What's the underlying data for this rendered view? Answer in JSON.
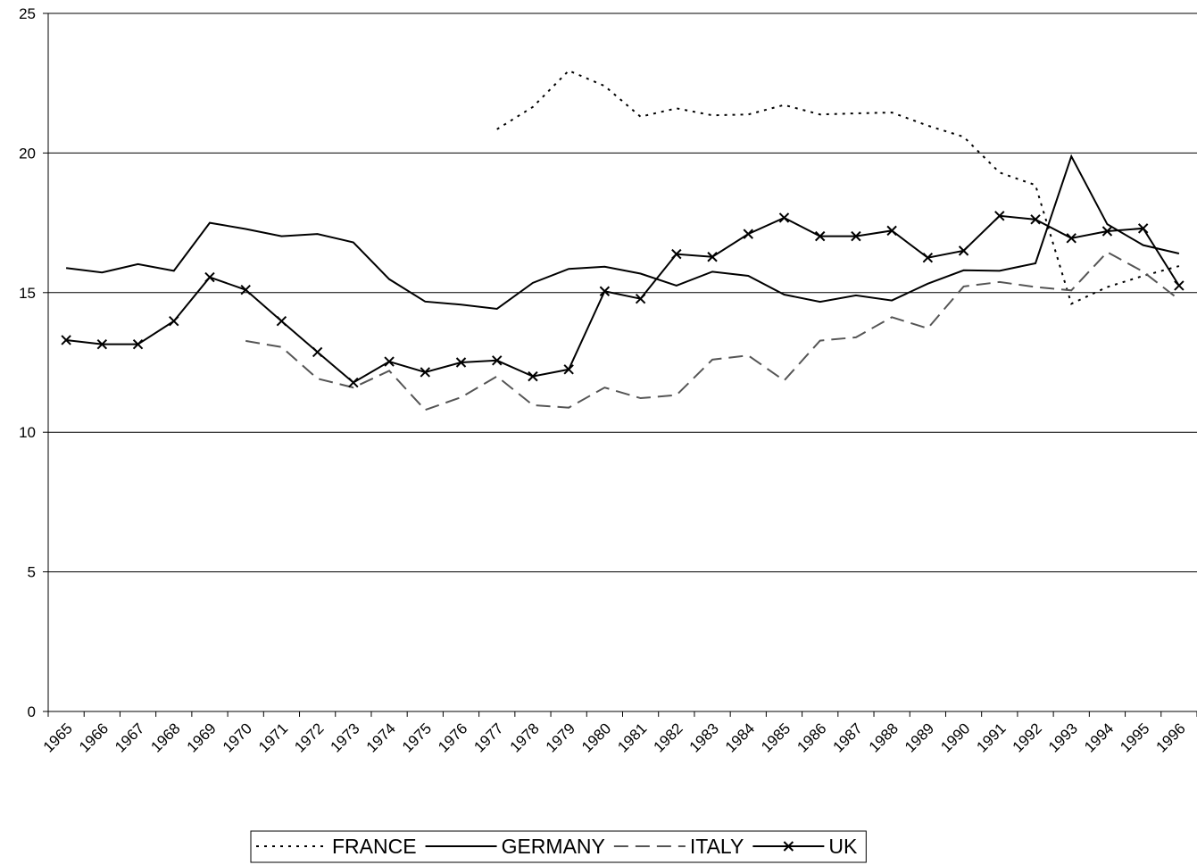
{
  "chart_data": {
    "type": "line",
    "categories": [
      "1965",
      "1966",
      "1967",
      "1968",
      "1969",
      "1970",
      "1971",
      "1972",
      "1973",
      "1974",
      "1975",
      "1976",
      "1977",
      "1978",
      "1979",
      "1980",
      "1981",
      "1982",
      "1983",
      "1984",
      "1985",
      "1986",
      "1987",
      "1988",
      "1989",
      "1990",
      "1991",
      "1992",
      "1993",
      "1994",
      "1995",
      "1996"
    ],
    "series": [
      {
        "name": "FRANCE",
        "color": "#000000",
        "style": "dotted",
        "values": [
          null,
          null,
          null,
          null,
          null,
          null,
          null,
          null,
          null,
          null,
          null,
          null,
          20.85,
          21.65,
          22.95,
          22.4,
          21.3,
          21.6,
          21.35,
          21.38,
          21.72,
          21.38,
          21.42,
          21.45,
          20.98,
          20.58,
          19.3,
          18.85,
          14.6,
          15.2,
          15.6,
          15.95
        ]
      },
      {
        "name": "GERMANY",
        "color": "#000000",
        "style": "solid",
        "values": [
          15.88,
          15.72,
          16.02,
          15.78,
          17.5,
          17.28,
          17.02,
          17.1,
          16.8,
          15.48,
          14.68,
          14.57,
          14.42,
          15.35,
          15.85,
          15.93,
          15.68,
          15.25,
          15.75,
          15.6,
          14.93,
          14.67,
          14.9,
          14.72,
          15.32,
          15.8,
          15.78,
          16.05,
          19.88,
          17.45,
          16.7,
          16.4
        ]
      },
      {
        "name": "ITALY",
        "color": "#555555",
        "style": "dashed",
        "values": [
          null,
          null,
          null,
          null,
          null,
          13.27,
          13.05,
          11.92,
          11.6,
          12.2,
          10.8,
          11.25,
          12.0,
          10.97,
          10.88,
          11.6,
          11.22,
          11.33,
          12.6,
          12.75,
          11.85,
          13.28,
          13.4,
          14.12,
          13.72,
          15.22,
          15.38,
          15.2,
          15.08,
          16.45,
          15.75,
          14.75
        ]
      },
      {
        "name": "UK",
        "color": "#000000",
        "style": "solid",
        "marker": "x",
        "values": [
          13.3,
          13.15,
          13.15,
          13.98,
          15.55,
          15.1,
          13.98,
          12.87,
          11.78,
          12.53,
          12.15,
          12.5,
          12.57,
          12.0,
          12.25,
          15.05,
          14.78,
          16.38,
          16.28,
          17.1,
          17.68,
          17.02,
          17.02,
          17.22,
          16.25,
          16.5,
          17.75,
          17.62,
          16.95,
          17.2,
          17.3,
          15.25
        ]
      }
    ],
    "ylim": [
      0,
      25
    ],
    "yticks": [
      0,
      5,
      10,
      15,
      20,
      25
    ],
    "grid": true,
    "legend": "bottom"
  }
}
